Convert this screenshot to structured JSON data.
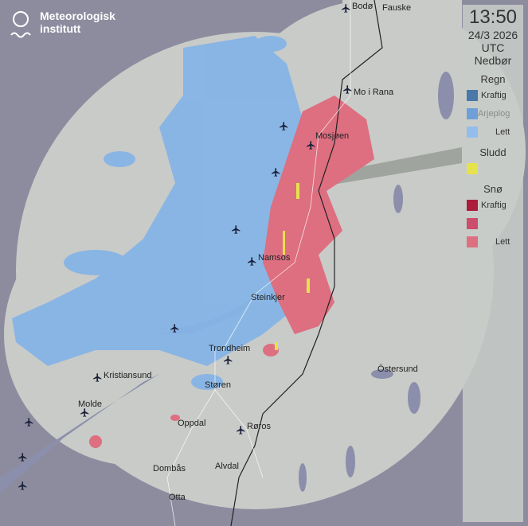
{
  "logo": {
    "line1": "Meteorologisk",
    "line2": "institutt"
  },
  "legend": {
    "time": "13:50",
    "date": "24/3 2026",
    "tz": "UTC",
    "product": "Nedbør",
    "groups": [
      {
        "title": "Regn",
        "items": [
          {
            "label": "Kraftig",
            "color": "#4a78a8"
          },
          {
            "label": "",
            "color": "#6f9fd8"
          },
          {
            "label": "Lett",
            "color": "#92bdec"
          }
        ]
      },
      {
        "title": "Sludd",
        "items": [
          {
            "label": "",
            "color": "#e6e24c"
          }
        ]
      },
      {
        "title": "Snø",
        "items": [
          {
            "label": "Kraftig",
            "color": "#ac1d3c"
          },
          {
            "label": "",
            "color": "#cc4d6c"
          },
          {
            "label": "Lett",
            "color": "#dd6f80"
          }
        ]
      }
    ]
  },
  "places": [
    {
      "name": "Bodø"
    },
    {
      "name": "Fauske"
    },
    {
      "name": "Mo i Rana"
    },
    {
      "name": "Mosjøen"
    },
    {
      "name": "Arjeplog"
    },
    {
      "name": "Namsos"
    },
    {
      "name": "Steinkjer"
    },
    {
      "name": "Trondheim"
    },
    {
      "name": "Kristiansund"
    },
    {
      "name": "Molde"
    },
    {
      "name": "Støren"
    },
    {
      "name": "Östersund"
    },
    {
      "name": "Oppdal"
    },
    {
      "name": "Røros"
    },
    {
      "name": "Dombås"
    },
    {
      "name": "Alvdal"
    },
    {
      "name": "Otta"
    }
  ],
  "colors": {
    "outside": "#8d8c9f",
    "coverage": "#c9cbc8",
    "water": "#8b8fab",
    "rain": "#86b4e6",
    "snow": "#dd6f80",
    "sleet": "#e6e24c"
  }
}
